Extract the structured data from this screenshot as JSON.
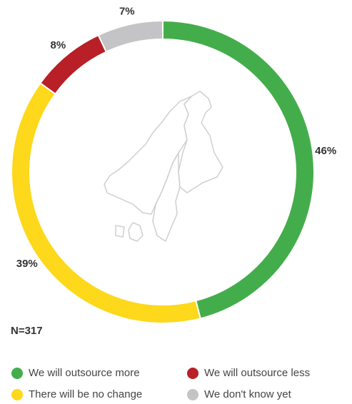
{
  "chart_data": {
    "type": "donut",
    "categories": [
      "We will outsource more",
      "There will be no change",
      "We will outsource less",
      "We don't know yet"
    ],
    "values": [
      46,
      39,
      8,
      7
    ],
    "value_labels": [
      "46%",
      "39%",
      "8%",
      "7%"
    ],
    "colors": [
      "#44ad4b",
      "#fdd81b",
      "#b81f26",
      "#c4c4c6"
    ],
    "annotation": "N=317"
  }
}
